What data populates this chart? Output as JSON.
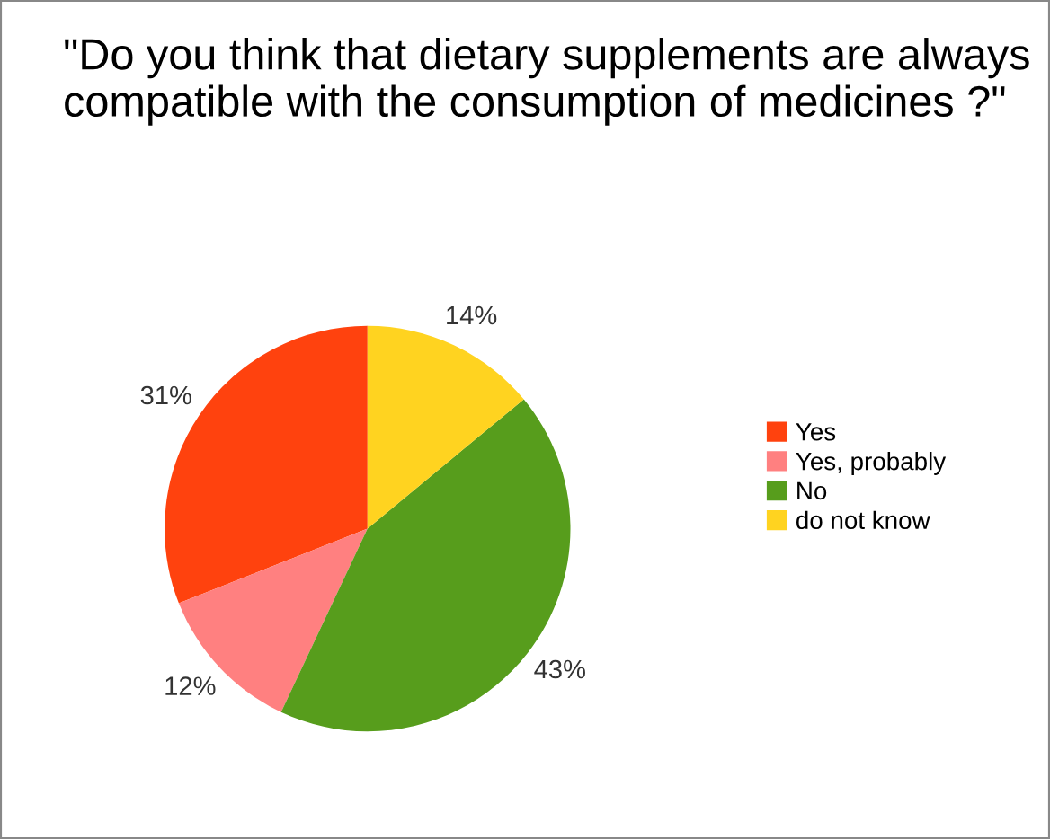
{
  "chart_data": {
    "type": "pie",
    "title": "\"Do you think that dietary supplements are always compatible with the consumption of medicines ?\"",
    "categories": [
      "Yes",
      "Yes, probably",
      "No",
      "do not know"
    ],
    "values": [
      31,
      12,
      43,
      14
    ],
    "colors": [
      "#ff420e",
      "#ff8080",
      "#579d1c",
      "#ffd320"
    ],
    "value_labels": [
      "31%",
      "12%",
      "43%",
      "14%"
    ],
    "legend": "right"
  }
}
